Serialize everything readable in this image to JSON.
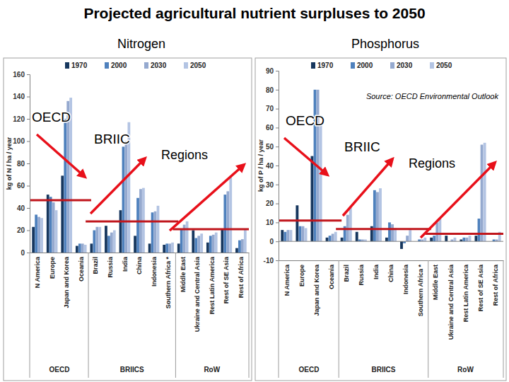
{
  "title": "Projected agricultural nutrient surpluses to 2050",
  "source": "Source: OECD Environmental Outlook",
  "chart_data": [
    {
      "type": "bar",
      "subtitle": "Nitrogen",
      "ylabel": "kg of N / ha / year",
      "categories": [
        "N America",
        "Europe",
        "Japan and Korea",
        "Oceania",
        "Brazil",
        "Russia",
        "India",
        "China",
        "Indonesia",
        "Southern Africa *",
        "Middle East",
        "Ukraine and Central Asia",
        "Rest Latin America",
        "Rest of SE Asia",
        "Rest of Africa"
      ],
      "series": [
        {
          "name": "1970",
          "color": "#17375e",
          "values": [
            23,
            52,
            69,
            6,
            8,
            24,
            38,
            15,
            8,
            7,
            8,
            20,
            9,
            21,
            4
          ]
        },
        {
          "name": "2000",
          "color": "#4f81bd",
          "values": [
            34,
            50,
            120,
            8,
            20,
            15,
            95,
            49,
            36,
            8,
            21,
            13,
            15,
            52,
            11
          ]
        },
        {
          "name": "2030",
          "color": "#95a9cf",
          "values": [
            32,
            45,
            136,
            8,
            23,
            18,
            100,
            57,
            37,
            8,
            25,
            15,
            16,
            55,
            12
          ]
        },
        {
          "name": "2050",
          "color": "#b3c4e3",
          "values": [
            31,
            38,
            139,
            7,
            23,
            20,
            117,
            58,
            42,
            9,
            28,
            17,
            18,
            69,
            21
          ]
        }
      ],
      "ylim": [
        0,
        160
      ],
      "yticks": [
        0,
        20,
        40,
        60,
        80,
        100,
        120,
        140,
        160
      ],
      "grid": false,
      "legend": "top",
      "groups": [
        {
          "label": "OECD",
          "start": 0,
          "end": 3,
          "reference": 47
        },
        {
          "label": "BRIICS",
          "start": 4,
          "end": 9,
          "reference": 28
        },
        {
          "label": "RoW",
          "start": 10,
          "end": 14,
          "reference": 21
        }
      ],
      "annotations": [
        "OECD",
        "BRIIC",
        "Regions"
      ]
    },
    {
      "type": "bar",
      "subtitle": "Phosphorus",
      "ylabel": "kg of P / ha / year",
      "categories": [
        "N America",
        "Europe",
        "Japan and Korea",
        "Oceania",
        "Brazil",
        "Russia",
        "India",
        "China",
        "Indonesia",
        "Southern Africa *",
        "Middle East",
        "Ukraine and Central Asia",
        "Rest Latin America",
        "Rest of SE Asia",
        "Rest of Africa"
      ],
      "series": [
        {
          "name": "1970",
          "color": "#17375e",
          "values": [
            6,
            19,
            45,
            2,
            2,
            5,
            8,
            2,
            -4,
            0,
            2,
            3,
            1,
            3,
            0
          ]
        },
        {
          "name": "2000",
          "color": "#4f81bd",
          "values": [
            5,
            8,
            80,
            3,
            8,
            1,
            27,
            10,
            -1,
            1,
            3,
            0,
            2,
            12,
            1
          ]
        },
        {
          "name": "2030",
          "color": "#95a9cf",
          "values": [
            6,
            8,
            80,
            4,
            14,
            1,
            26,
            9,
            3,
            1,
            10,
            1,
            2,
            51,
            1
          ]
        },
        {
          "name": "2050",
          "color": "#b3c4e3",
          "values": [
            6,
            7,
            62,
            5,
            18,
            1,
            28,
            7,
            6,
            2,
            12,
            2,
            3,
            52,
            5
          ]
        }
      ],
      "ylim": [
        -10,
        90
      ],
      "yticks": [
        -10,
        0,
        10,
        20,
        30,
        40,
        50,
        60,
        70,
        80,
        90
      ],
      "grid": false,
      "legend": "top",
      "groups": [
        {
          "label": "OECD",
          "start": 0,
          "end": 3,
          "reference": 11
        },
        {
          "label": "BRIICS",
          "start": 4,
          "end": 9,
          "reference": 6.5
        },
        {
          "label": "RoW",
          "start": 10,
          "end": 14,
          "reference": 4
        }
      ],
      "annotations": [
        "OECD",
        "BRIIC",
        "Regions"
      ]
    }
  ]
}
